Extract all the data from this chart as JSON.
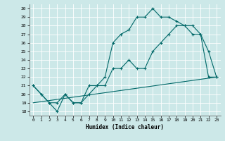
{
  "xlabel": "Humidex (Indice chaleur)",
  "bg_color": "#cce8e8",
  "line_color": "#006868",
  "xlim": [
    -0.5,
    23.5
  ],
  "ylim": [
    17.5,
    30.5
  ],
  "xticks": [
    0,
    1,
    2,
    3,
    4,
    5,
    6,
    7,
    8,
    9,
    10,
    11,
    12,
    13,
    14,
    15,
    16,
    17,
    18,
    19,
    20,
    21,
    22,
    23
  ],
  "yticks": [
    18,
    19,
    20,
    21,
    22,
    23,
    24,
    25,
    26,
    27,
    28,
    29,
    30
  ],
  "line_upper": {
    "x": [
      0,
      1,
      2,
      3,
      4,
      5,
      6,
      7,
      8,
      9,
      10,
      11,
      12,
      13,
      14,
      15,
      16,
      17,
      18,
      19,
      20,
      21,
      22,
      23
    ],
    "y": [
      21,
      20,
      19,
      19,
      20,
      19,
      19,
      21,
      21,
      22,
      26,
      27,
      27.5,
      29,
      29,
      30,
      29,
      29,
      28.5,
      28,
      27,
      27,
      25,
      22
    ]
  },
  "line_lower": {
    "x": [
      0,
      1,
      2,
      3,
      4,
      5,
      6,
      7,
      8,
      9,
      10,
      11,
      12,
      13,
      14,
      15,
      16,
      17,
      18,
      19,
      20,
      21,
      22,
      23
    ],
    "y": [
      21,
      20,
      19,
      18,
      20,
      19,
      19,
      20,
      21,
      21,
      23,
      23,
      24,
      23,
      23,
      25,
      26,
      27,
      28,
      28,
      28,
      27,
      22,
      22
    ]
  },
  "line_diag": {
    "x": [
      0,
      23
    ],
    "y": [
      19,
      22
    ]
  }
}
